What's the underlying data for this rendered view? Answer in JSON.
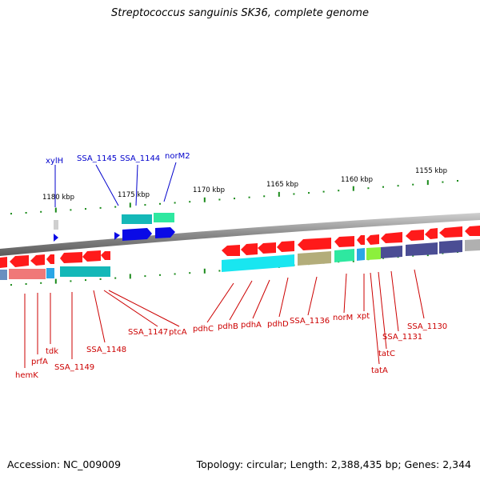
{
  "title": "Streptococcus sanguinis SK36, complete genome",
  "accession": "Accession: NC_009009",
  "topology": "Topology: circular; Length: 2,388,435 bp; Genes: 2,344",
  "scale_labels": [
    "1180 kbp",
    "1175 kbp",
    "1170 kbp",
    "1165 kbp",
    "1160 kbp",
    "1155 kbp"
  ],
  "colors": {
    "forward_label": "#0000cc",
    "reverse_label": "#cc0000",
    "backbone": "#8a8a8a",
    "red_arrow": "#ff1a1a",
    "blue_arrow": "#0a0ae6",
    "cyan_band": "#19c2cc",
    "teal_band": "#14b8b8",
    "green_band": "#2ee8a0",
    "olive_band": "#b3ad7a",
    "navy_band": "#4b4d94",
    "pink_band": "#f07878",
    "steel_band": "#6a8fc0",
    "lime_band": "#8cf03c",
    "tick_green": "#1a8a1a"
  },
  "forward_genes": [
    "xylH",
    "SSA_1145",
    "SSA_1144",
    "norM2"
  ],
  "reverse_genes": [
    "hemK",
    "prfA",
    "tdk",
    "SSA_1149",
    "SSA_1148",
    "SSA_1147",
    "ptcA",
    "pdhC",
    "pdhB",
    "pdhA",
    "pdhD",
    "SSA_1136",
    "norM",
    "xpt",
    "tatA",
    "tatC",
    "SSA_1131",
    "SSA_1130"
  ]
}
